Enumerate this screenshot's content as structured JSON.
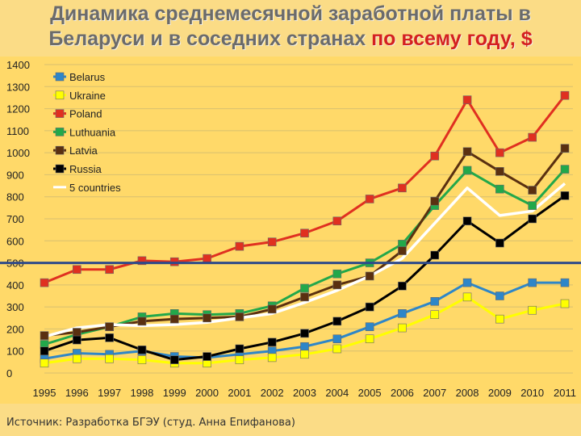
{
  "title": {
    "line1": "Динамика среднемесячной заработной платы в",
    "line2_main": "Беларуси и в соседних странах ",
    "line2_highlight": "по всему году, $"
  },
  "source": "Источник: Разработка БГЭУ (студ. Анна Епифанова)",
  "colors": {
    "background": "#fbdc86",
    "plot_area": "#ffd969",
    "title_text": "#6b6b6b",
    "title_highlight": "#d42020",
    "reference_line": "#2e4a8a"
  },
  "chart_data": {
    "type": "line",
    "title": "",
    "xlabel": "",
    "ylabel": "",
    "x": [
      "1995",
      "1996",
      "1997",
      "1998",
      "1999",
      "2000",
      "2001",
      "2002",
      "2003",
      "2004",
      "2005",
      "2006",
      "2007",
      "2008",
      "2009",
      "2010",
      "2011"
    ],
    "ylim": [
      0,
      1400
    ],
    "yticks": [
      0,
      100,
      200,
      300,
      400,
      500,
      600,
      700,
      800,
      900,
      1000,
      1100,
      1200,
      1300,
      1400
    ],
    "grid": true,
    "legend_position": "top-left",
    "reference_line": {
      "value": 500,
      "color": "#2e4a8a"
    },
    "series": [
      {
        "name": "Belarus",
        "color": "#2e86c8",
        "marker": "square",
        "values": [
          65,
          90,
          85,
          100,
          75,
          70,
          85,
          100,
          120,
          155,
          210,
          270,
          325,
          410,
          350,
          410,
          410
        ]
      },
      {
        "name": "Ukraine",
        "color": "#ffff00",
        "marker": "square",
        "values": [
          45,
          65,
          65,
          60,
          45,
          45,
          60,
          70,
          85,
          110,
          155,
          205,
          265,
          345,
          245,
          285,
          315
        ]
      },
      {
        "name": "Poland",
        "color": "#e03020",
        "marker": "square",
        "values": [
          410,
          470,
          470,
          510,
          505,
          520,
          575,
          595,
          635,
          690,
          790,
          840,
          985,
          1240,
          1000,
          1070,
          1260
        ]
      },
      {
        "name": "Luthuania",
        "color": "#22a84a",
        "marker": "square",
        "values": [
          130,
          175,
          210,
          255,
          270,
          265,
          270,
          305,
          385,
          450,
          500,
          585,
          760,
          920,
          835,
          760,
          925
        ]
      },
      {
        "name": "Latvia",
        "color": "#5a3010",
        "marker": "square",
        "values": [
          170,
          185,
          210,
          235,
          245,
          250,
          255,
          290,
          345,
          400,
          440,
          555,
          780,
          1005,
          915,
          830,
          1020
        ]
      },
      {
        "name": "Russia",
        "color": "#000000",
        "marker": "square",
        "values": [
          100,
          150,
          160,
          105,
          60,
          75,
          110,
          140,
          180,
          235,
          300,
          395,
          535,
          690,
          590,
          700,
          805
        ]
      },
      {
        "name": "5 countries",
        "color": "#ffffff",
        "marker": "none",
        "values": [
          165,
          205,
          220,
          215,
          220,
          230,
          250,
          270,
          320,
          375,
          440,
          520,
          680,
          840,
          715,
          735,
          860
        ]
      }
    ]
  }
}
